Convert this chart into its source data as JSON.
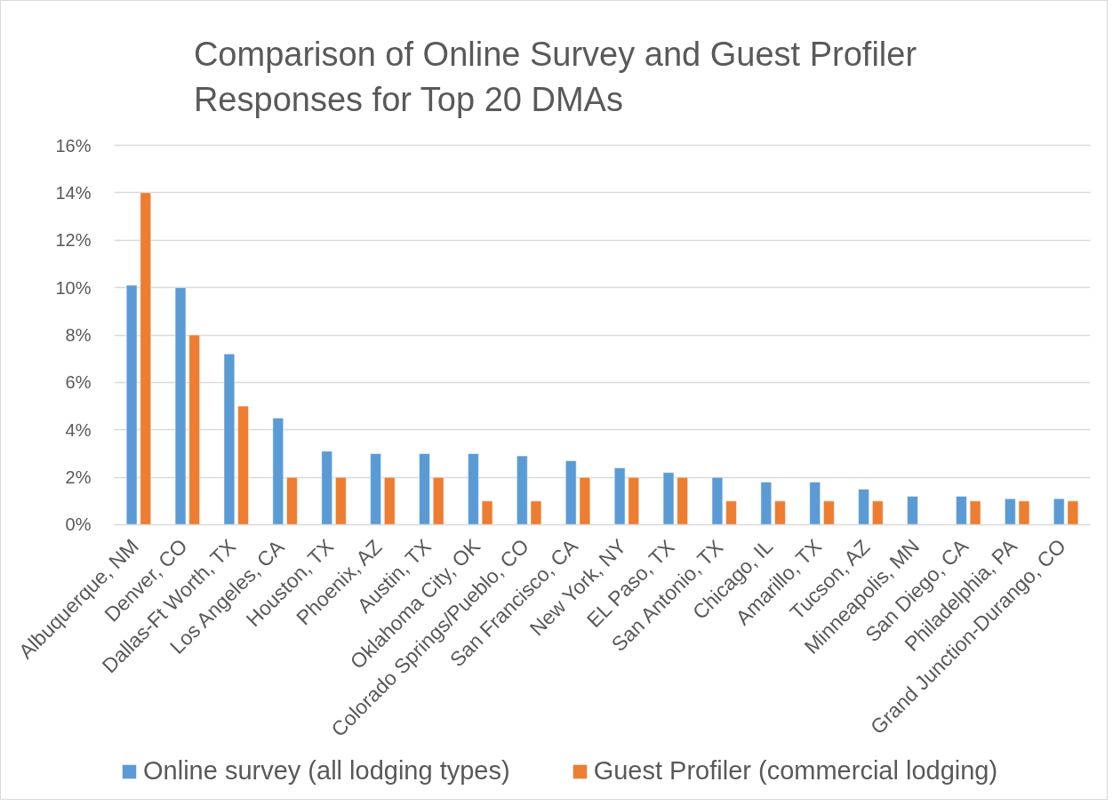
{
  "chart_data": {
    "type": "bar",
    "title": "Comparison of Online Survey and Guest Profiler Responses for Top 20 DMAs",
    "categories": [
      "Albuquerque, NM",
      "Denver, CO",
      "Dallas-Ft Worth, TX",
      "Los Angeles, CA",
      "Houston, TX",
      "Phoenix, AZ",
      "Austin, TX",
      "Oklahoma City, OK",
      "Colorado Springs/Pueblo, CO",
      "San Francisco, CA",
      "New York, NY",
      "EL Paso, TX",
      "San Antonio, TX",
      "Chicago, IL",
      "Amarillo, TX",
      "Tucson, AZ",
      "Minneapolis, MN",
      "San Diego, CA",
      "Philadelphia, PA",
      "Grand Junction-Durango, CO"
    ],
    "series": [
      {
        "name": "Online survey (all lodging types)",
        "color": "#5b9bd5",
        "values": [
          10.1,
          10.0,
          7.2,
          4.5,
          3.1,
          3.0,
          3.0,
          3.0,
          2.9,
          2.7,
          2.4,
          2.2,
          2.0,
          1.8,
          1.8,
          1.5,
          1.2,
          1.2,
          1.1,
          1.1
        ]
      },
      {
        "name": "Guest Profiler (commercial lodging)",
        "color": "#ed7d31",
        "values": [
          14,
          8,
          5,
          2,
          2,
          2,
          2,
          1,
          1,
          2,
          2,
          2,
          1,
          1,
          1,
          1,
          null,
          1,
          1,
          1
        ]
      }
    ],
    "ylim": [
      0,
      16
    ],
    "yticks": [
      {
        "value": 0,
        "label": "0%"
      },
      {
        "value": 2,
        "label": "2%"
      },
      {
        "value": 4,
        "label": "4%"
      },
      {
        "value": 6,
        "label": "6%"
      },
      {
        "value": 8,
        "label": "8%"
      },
      {
        "value": 10,
        "label": "10%"
      },
      {
        "value": 12,
        "label": "12%"
      },
      {
        "value": 14,
        "label": "14%"
      },
      {
        "value": 16,
        "label": "16%"
      }
    ],
    "grid": "y",
    "legend": "bottom"
  }
}
